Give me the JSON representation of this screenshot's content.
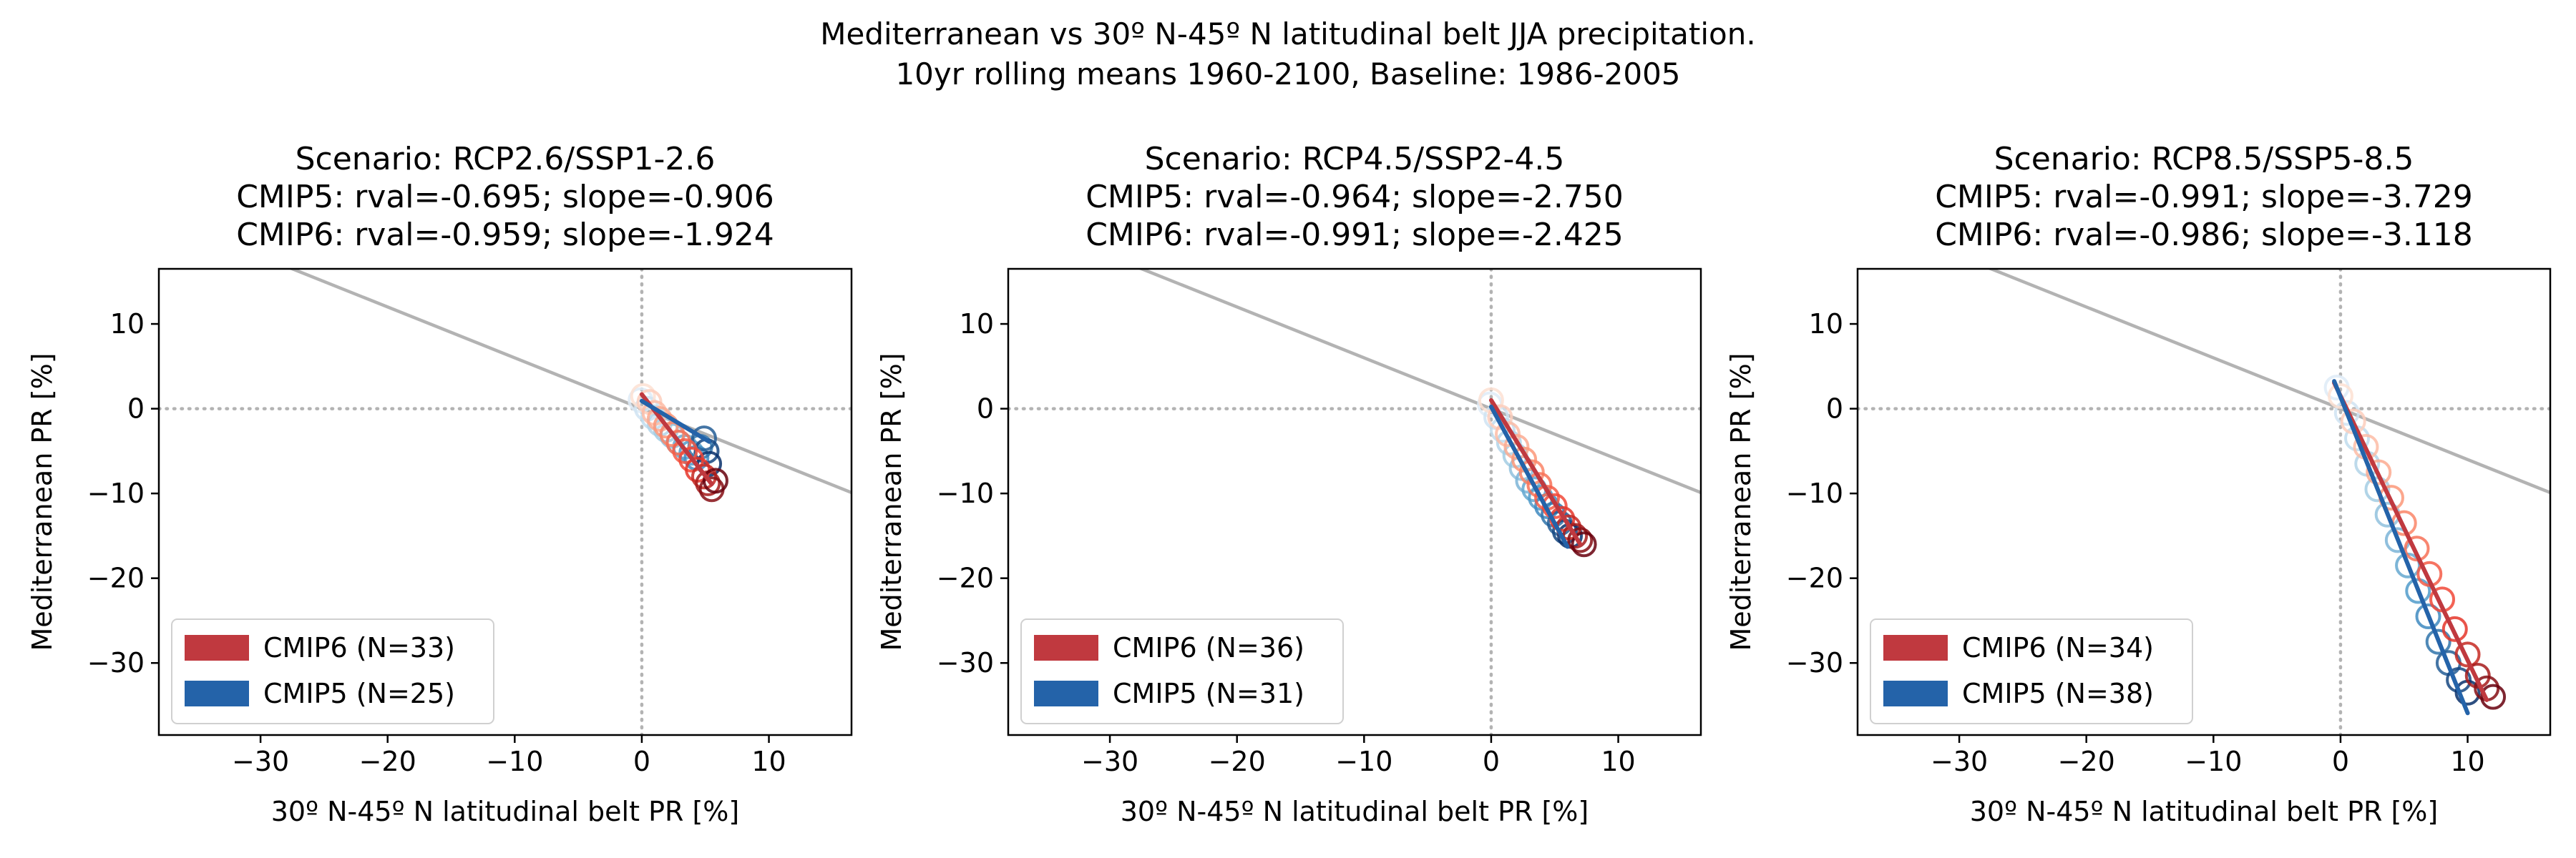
{
  "suptitle": {
    "line1": "Mediterranean vs 30º N-45º N latitudinal belt JJA precipitation.",
    "line2": "10yr rolling means 1960-2100, Baseline: 1986-2005"
  },
  "colors": {
    "cmip6": "#c0393f",
    "cmip5": "#2463a9",
    "ref_line": "#b3b3b3",
    "zero_line": "#b3b3b3"
  },
  "chart_data": [
    {
      "type": "scatter",
      "title_lines": [
        "Scenario: RCP2.6/SSP1-2.6",
        "CMIP5: rval=-0.695; slope=-0.906",
        "CMIP6: rval=-0.959; slope=-1.924"
      ],
      "xlabel": "30º N-45º N latitudinal belt PR [%]",
      "ylabel": "Mediterranean PR [%]",
      "xlim": [
        -38,
        16.5
      ],
      "ylim": [
        -38.5,
        16.5
      ],
      "xticks": [
        -30,
        -20,
        -10,
        0,
        10
      ],
      "yticks": [
        -30,
        -20,
        -10,
        0,
        10
      ],
      "legend_position": "lower left",
      "legend": [
        {
          "label": "CMIP6 (N=33)",
          "color": "#c0393f"
        },
        {
          "label": "CMIP5 (N=25)",
          "color": "#2463a9"
        }
      ],
      "reference_line": {
        "slope": -0.6,
        "intercept": 0
      },
      "series": [
        {
          "name": "CMIP6",
          "palette": "Reds",
          "fit": {
            "slope": -1.924,
            "x0": 0,
            "x1": 5.5
          },
          "x": [
            0.1,
            0.6,
            1.0,
            1.4,
            1.9,
            2.4,
            2.9,
            3.4,
            3.9,
            4.4,
            4.9,
            5.2,
            5.5,
            5.8
          ],
          "y": [
            1.5,
            0.8,
            -0.5,
            -1.2,
            -2.0,
            -3.0,
            -4.0,
            -5.0,
            -6.0,
            -7.2,
            -8.0,
            -8.8,
            -9.5,
            -8.5
          ]
        },
        {
          "name": "CMIP5",
          "palette": "Blues",
          "fit": {
            "slope": -0.906,
            "x0": 0,
            "x1": 5.3
          },
          "x": [
            -0.1,
            0.4,
            0.9,
            1.4,
            1.9,
            2.4,
            2.9,
            3.4,
            3.9,
            4.3,
            4.6,
            4.9,
            5.1,
            5.3
          ],
          "y": [
            1.0,
            0.0,
            -1.0,
            -1.8,
            -2.5,
            -3.2,
            -4.0,
            -4.5,
            -5.2,
            -5.8,
            -4.5,
            -3.5,
            -5.0,
            -6.5
          ]
        }
      ]
    },
    {
      "type": "scatter",
      "title_lines": [
        "Scenario: RCP4.5/SSP2-4.5",
        "CMIP5: rval=-0.964; slope=-2.750",
        "CMIP6: rval=-0.991; slope=-2.425"
      ],
      "xlabel": "30º N-45º N latitudinal belt PR [%]",
      "ylabel": "Mediterranean PR [%]",
      "xlim": [
        -38,
        16.5
      ],
      "ylim": [
        -38.5,
        16.5
      ],
      "xticks": [
        -30,
        -20,
        -10,
        0,
        10
      ],
      "yticks": [
        -30,
        -20,
        -10,
        0,
        10
      ],
      "legend_position": "lower left",
      "legend": [
        {
          "label": "CMIP6 (N=36)",
          "color": "#c0393f"
        },
        {
          "label": "CMIP5 (N=31)",
          "color": "#2463a9"
        }
      ],
      "reference_line": {
        "slope": -0.6,
        "intercept": 0
      },
      "series": [
        {
          "name": "CMIP6",
          "palette": "Reds",
          "fit": {
            "slope": -2.425,
            "x0": 0,
            "x1": 7.0
          },
          "x": [
            0.0,
            0.7,
            1.3,
            2.0,
            2.6,
            3.2,
            3.8,
            4.4,
            5.0,
            5.6,
            6.1,
            6.6,
            7.0,
            7.3
          ],
          "y": [
            1.0,
            -1.0,
            -3.0,
            -4.5,
            -6.0,
            -7.5,
            -9.0,
            -10.5,
            -11.5,
            -13.0,
            -14.0,
            -15.0,
            -15.5,
            -16.0
          ]
        },
        {
          "name": "CMIP5",
          "palette": "Blues",
          "fit": {
            "slope": -2.75,
            "x0": 0,
            "x1": 6.0
          },
          "x": [
            -0.1,
            0.4,
            0.9,
            1.4,
            1.9,
            2.4,
            2.9,
            3.4,
            3.9,
            4.4,
            4.9,
            5.4,
            5.8,
            6.2
          ],
          "y": [
            0.5,
            -1.0,
            -2.5,
            -4.0,
            -5.5,
            -7.0,
            -8.5,
            -9.5,
            -10.5,
            -11.5,
            -12.5,
            -13.5,
            -14.5,
            -15.0
          ]
        }
      ]
    },
    {
      "type": "scatter",
      "title_lines": [
        "Scenario: RCP8.5/SSP5-8.5",
        "CMIP5: rval=-0.991; slope=-3.729",
        "CMIP6: rval=-0.986; slope=-3.118"
      ],
      "xlabel": "30º N-45º N latitudinal belt PR [%]",
      "ylabel": "Mediterranean PR [%]",
      "xlim": [
        -38,
        16.5
      ],
      "ylim": [
        -38.5,
        16.5
      ],
      "xticks": [
        -30,
        -20,
        -10,
        0,
        10
      ],
      "yticks": [
        -30,
        -20,
        -10,
        0,
        10
      ],
      "legend_position": "lower left",
      "legend": [
        {
          "label": "CMIP6 (N=34)",
          "color": "#c0393f"
        },
        {
          "label": "CMIP5 (N=38)",
          "color": "#2463a9"
        }
      ],
      "reference_line": {
        "slope": -0.6,
        "intercept": 0
      },
      "series": [
        {
          "name": "CMIP6",
          "palette": "Reds",
          "fit": {
            "slope": -3.118,
            "x0": -0.5,
            "x1": 11.5
          },
          "x": [
            0.0,
            1.0,
            2.0,
            3.0,
            4.0,
            5.0,
            6.0,
            7.0,
            8.0,
            9.0,
            10.0,
            10.8,
            11.5,
            12.0
          ],
          "y": [
            1.5,
            -1.5,
            -4.5,
            -7.5,
            -10.5,
            -13.5,
            -16.5,
            -19.5,
            -22.5,
            -26.0,
            -29.0,
            -31.5,
            -33.0,
            -34.0
          ]
        },
        {
          "name": "CMIP5",
          "palette": "Blues",
          "fit": {
            "slope": -3.729,
            "x0": -0.5,
            "x1": 10.0
          },
          "x": [
            -0.3,
            0.5,
            1.3,
            2.1,
            2.9,
            3.7,
            4.5,
            5.3,
            6.1,
            6.9,
            7.7,
            8.5,
            9.3,
            10.0
          ],
          "y": [
            2.5,
            -0.5,
            -3.5,
            -6.5,
            -9.5,
            -12.5,
            -15.5,
            -18.5,
            -21.5,
            -24.5,
            -27.5,
            -30.0,
            -32.0,
            -33.5
          ]
        }
      ]
    }
  ]
}
